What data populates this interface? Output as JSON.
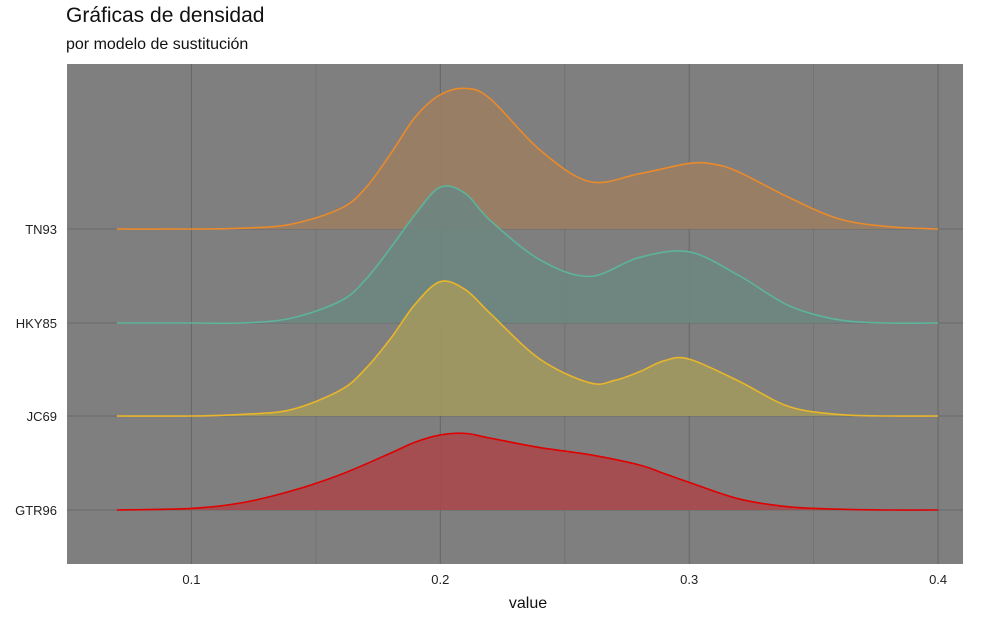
{
  "chart_data": {
    "type": "ridgeline",
    "title": "Gráficas de densidad",
    "subtitle": "por modelo de sustitución",
    "xlabel": "value",
    "ylabel": "",
    "xlim": [
      0.05,
      0.41
    ],
    "x_ticks": [
      "0.1",
      "0.2",
      "0.3",
      "0.4"
    ],
    "x_tick_values": [
      0.1,
      0.2,
      0.3,
      0.4
    ],
    "panel_background": "#7f7f7f",
    "grid": true,
    "categories": [
      "GTR96",
      "JC69",
      "HKY85",
      "TN93"
    ],
    "series": [
      {
        "name": "GTR96",
        "color": "#e00000",
        "fill": "#a74a4e",
        "x": [
          0.07,
          0.1,
          0.12,
          0.14,
          0.16,
          0.18,
          0.19,
          0.2,
          0.21,
          0.22,
          0.24,
          0.26,
          0.28,
          0.29,
          0.3,
          0.32,
          0.34,
          0.36,
          0.38,
          0.4
        ],
        "density": [
          0.0,
          0.02,
          0.09,
          0.24,
          0.45,
          0.72,
          0.86,
          0.95,
          0.97,
          0.91,
          0.79,
          0.7,
          0.57,
          0.46,
          0.35,
          0.14,
          0.04,
          0.01,
          0.0,
          0.0
        ]
      },
      {
        "name": "JC69",
        "color": "#e8b62a",
        "fill": "#a09860",
        "x": [
          0.07,
          0.1,
          0.12,
          0.14,
          0.16,
          0.17,
          0.18,
          0.19,
          0.2,
          0.21,
          0.22,
          0.24,
          0.26,
          0.27,
          0.28,
          0.29,
          0.3,
          0.32,
          0.34,
          0.36,
          0.38,
          0.4
        ],
        "density": [
          0.0,
          0.0,
          0.02,
          0.08,
          0.33,
          0.6,
          0.98,
          1.42,
          1.7,
          1.6,
          1.3,
          0.72,
          0.42,
          0.45,
          0.56,
          0.7,
          0.72,
          0.44,
          0.12,
          0.02,
          0.0,
          0.0
        ]
      },
      {
        "name": "HKY85",
        "color": "#5cb49b",
        "fill": "#6e8680",
        "x": [
          0.07,
          0.1,
          0.12,
          0.14,
          0.16,
          0.17,
          0.18,
          0.19,
          0.2,
          0.21,
          0.22,
          0.24,
          0.26,
          0.28,
          0.3,
          0.32,
          0.34,
          0.36,
          0.38,
          0.4
        ],
        "density": [
          0.0,
          0.0,
          0.0,
          0.06,
          0.28,
          0.55,
          0.95,
          1.38,
          1.72,
          1.64,
          1.3,
          0.8,
          0.59,
          0.83,
          0.9,
          0.6,
          0.22,
          0.04,
          0.0,
          0.0
        ]
      },
      {
        "name": "TN93",
        "color": "#ea8a2a",
        "fill": "#9a7e63",
        "x": [
          0.07,
          0.1,
          0.12,
          0.14,
          0.16,
          0.17,
          0.18,
          0.19,
          0.2,
          0.21,
          0.22,
          0.24,
          0.26,
          0.28,
          0.3,
          0.31,
          0.32,
          0.34,
          0.36,
          0.38,
          0.4
        ],
        "density": [
          0.0,
          0.0,
          0.01,
          0.06,
          0.26,
          0.52,
          0.95,
          1.42,
          1.7,
          1.78,
          1.65,
          1.0,
          0.6,
          0.7,
          0.83,
          0.82,
          0.72,
          0.4,
          0.13,
          0.03,
          0.0
        ]
      }
    ]
  }
}
